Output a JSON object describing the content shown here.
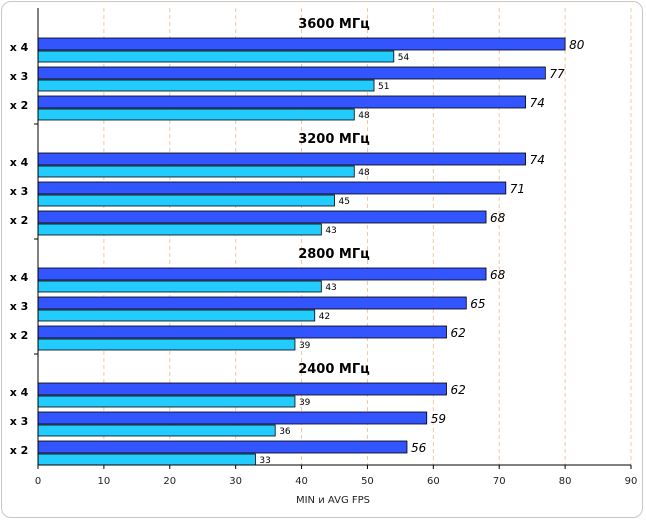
{
  "chart_data": {
    "type": "bar",
    "orientation": "horizontal",
    "xlabel": "MIN и AVG FPS",
    "xlim": [
      0,
      90
    ],
    "xticks": [
      0,
      10,
      20,
      30,
      40,
      50,
      60,
      70,
      80,
      90
    ],
    "grid": true,
    "colors": {
      "avg": "#3355ff",
      "min": "#22ccff",
      "grid": "#f0c8a0",
      "edge": "#000000"
    },
    "groups": [
      {
        "title": "3600 МГц",
        "rows": [
          {
            "label": "x 4",
            "avg": 80,
            "min": 54
          },
          {
            "label": "x 3",
            "avg": 77,
            "min": 51
          },
          {
            "label": "x 2",
            "avg": 74,
            "min": 48
          }
        ]
      },
      {
        "title": "3200 МГц",
        "rows": [
          {
            "label": "x 4",
            "avg": 74,
            "min": 48
          },
          {
            "label": "x 3",
            "avg": 71,
            "min": 45
          },
          {
            "label": "x 2",
            "avg": 68,
            "min": 43
          }
        ]
      },
      {
        "title": "2800 МГц",
        "rows": [
          {
            "label": "x 4",
            "avg": 68,
            "min": 43
          },
          {
            "label": "x 3",
            "avg": 65,
            "min": 42
          },
          {
            "label": "x 2",
            "avg": 62,
            "min": 39
          }
        ]
      },
      {
        "title": "2400 МГц",
        "rows": [
          {
            "label": "x 4",
            "avg": 62,
            "min": 39
          },
          {
            "label": "x 3",
            "avg": 59,
            "min": 36
          },
          {
            "label": "x 2",
            "avg": 56,
            "min": 33
          }
        ]
      }
    ]
  }
}
